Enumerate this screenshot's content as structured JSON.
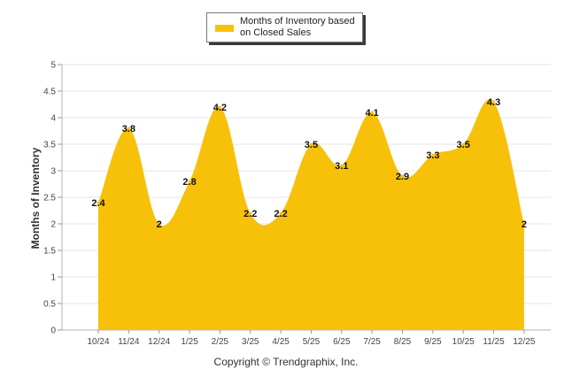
{
  "chart_data": {
    "type": "area",
    "title": "",
    "xlabel": "",
    "ylabel": "Months of Inventory",
    "ylim": [
      0,
      5
    ],
    "yticks": [
      "0",
      "0.5",
      "1",
      "1.5",
      "2",
      "2.5",
      "3",
      "3.5",
      "4",
      "4.5",
      "5"
    ],
    "grid": true,
    "legend_position": "top-center",
    "categories": [
      "10/24",
      "11/24",
      "12/24",
      "1/25",
      "2/25",
      "3/25",
      "4/25",
      "5/25",
      "6/25",
      "7/25",
      "8/25",
      "9/25",
      "10/25",
      "11/25",
      "12/25"
    ],
    "series": [
      {
        "name": "Months of Inventory based on Closed Sales",
        "color": "#f7c10a",
        "values": [
          2.4,
          3.8,
          2,
          2.8,
          4.2,
          2.2,
          2.2,
          3.5,
          3.1,
          4.1,
          2.9,
          3.3,
          3.5,
          4.3,
          2
        ],
        "labels": [
          "2.4",
          "3.8",
          "2",
          "2.8",
          "4.2",
          "2.2",
          "2.2",
          "3.5",
          "3.1",
          "4.1",
          "2.9",
          "3.3",
          "3.5",
          "4.3",
          "2"
        ]
      }
    ]
  },
  "legend": {
    "label": "Months of Inventory based on Closed Sales"
  },
  "footer": {
    "copyright": "Copyright © Trendgraphix, Inc."
  }
}
